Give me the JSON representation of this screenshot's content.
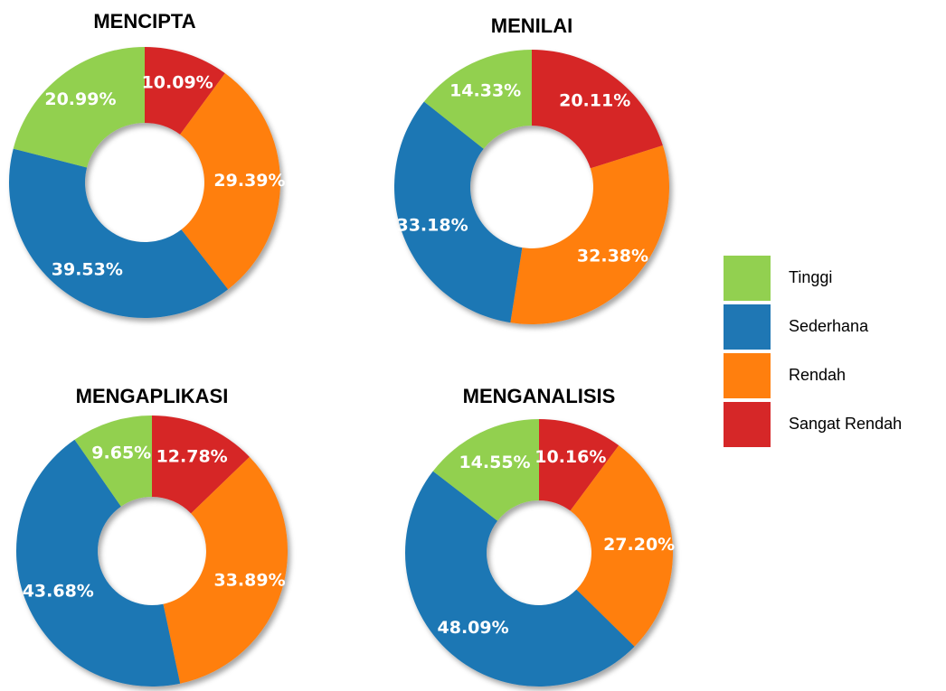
{
  "chart_data": [
    {
      "type": "donut",
      "title": "MENCIPTA",
      "categories": [
        "Tinggi",
        "Sederhana",
        "Rendah",
        "Sangat Rendah"
      ],
      "colors": [
        "#92d050",
        "#1f77b4",
        "#ff7f0e",
        "#d62728"
      ],
      "values": [
        20.99,
        39.53,
        29.39,
        10.09
      ],
      "value_labels": [
        "20.99%",
        "39.53%",
        "29.39%",
        "10.09%"
      ]
    },
    {
      "type": "donut",
      "title": "MENILAI",
      "categories": [
        "Tinggi",
        "Sederhana",
        "Rendah",
        "Sangat Rendah"
      ],
      "colors": [
        "#92d050",
        "#1f77b4",
        "#ff7f0e",
        "#d62728"
      ],
      "values": [
        14.33,
        33.18,
        32.38,
        20.11
      ],
      "value_labels": [
        "14.33%",
        "33.18%",
        "32.38%",
        "20.11%"
      ]
    },
    {
      "type": "donut",
      "title": "MENGAPLIKASI",
      "categories": [
        "Tinggi",
        "Sederhana",
        "Rendah",
        "Sangat Rendah"
      ],
      "colors": [
        "#92d050",
        "#1f77b4",
        "#ff7f0e",
        "#d62728"
      ],
      "values": [
        9.65,
        43.68,
        33.89,
        12.78
      ],
      "value_labels": [
        "9.65%",
        "43.68%",
        "33.89%",
        "12.78%"
      ]
    },
    {
      "type": "donut",
      "title": "MENGANALISIS",
      "categories": [
        "Tinggi",
        "Sederhana",
        "Rendah",
        "Sangat Rendah"
      ],
      "colors": [
        "#92d050",
        "#1f77b4",
        "#ff7f0e",
        "#d62728"
      ],
      "values": [
        14.55,
        48.09,
        27.2,
        10.16
      ],
      "value_labels": [
        "14.55%",
        "48.09%",
        "27.20%",
        "10.16%"
      ]
    }
  ]
}
